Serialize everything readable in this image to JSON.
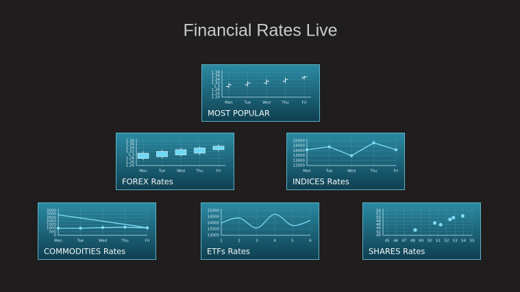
{
  "title": "Financial Rates Live",
  "tiles": [
    {
      "label": "MOST POPULAR",
      "chart": {
        "type": "ohlc",
        "categories": [
          "Mon",
          "Tue",
          "Wed",
          "Thu",
          "Fri"
        ],
        "open": [
          1.3,
          1.31,
          1.32,
          1.33,
          1.35
        ],
        "high": [
          1.32,
          1.33,
          1.34,
          1.35,
          1.36
        ],
        "low": [
          1.29,
          1.3,
          1.31,
          1.32,
          1.34
        ],
        "close": [
          1.31,
          1.32,
          1.33,
          1.34,
          1.355
        ],
        "ylim": [
          1.24,
          1.38
        ],
        "yticks": [
          1.24,
          1.26,
          1.28,
          1.3,
          1.32,
          1.34,
          1.36,
          1.38
        ],
        "color": "#e8f6fa"
      }
    },
    {
      "label": "FOREX Rates",
      "chart": {
        "type": "candlestick",
        "categories": [
          "Mon",
          "Tue",
          "Wed",
          "Thu",
          "Fri"
        ],
        "open": [
          1.28,
          1.29,
          1.3,
          1.31,
          1.33
        ],
        "high": [
          1.32,
          1.33,
          1.34,
          1.35,
          1.36
        ],
        "low": [
          1.27,
          1.28,
          1.29,
          1.3,
          1.32
        ],
        "close": [
          1.31,
          1.32,
          1.33,
          1.34,
          1.35
        ],
        "ylim": [
          1.24,
          1.38
        ],
        "yticks": [
          1.24,
          1.26,
          1.28,
          1.3,
          1.32,
          1.34,
          1.36,
          1.38
        ],
        "color": "#6fd8f2"
      }
    },
    {
      "label": "INDICES Rates",
      "chart": {
        "type": "line",
        "categories": [
          "Mon",
          "Tue",
          "Wed",
          "Thu",
          "Fri"
        ],
        "series": [
          {
            "color": "#7fdcf4",
            "markers": true,
            "values": [
              14100,
              14400,
              13500,
              14800,
              14100
            ]
          }
        ],
        "ylim": [
          12500,
          15000
        ],
        "yticks": [
          12500,
          13000,
          13500,
          14000,
          14500,
          15000
        ]
      }
    },
    {
      "label": "COMMODITIES Rates",
      "chart": {
        "type": "line",
        "categories": [
          "Mon",
          "Tue",
          "Wed",
          "Thu",
          "Fri"
        ],
        "series": [
          {
            "color": "#7fdcf4",
            "markers": false,
            "values": [
              2900,
              2450,
              2000,
              1550,
              1050
            ]
          },
          {
            "color": "#7fdcf4",
            "markers": true,
            "values": [
              1000,
              1000,
              1100,
              1150,
              1050
            ]
          }
        ],
        "ylim": [
          0,
          3500
        ],
        "yticks": [
          0,
          500,
          1000,
          1500,
          2000,
          2500,
          3000,
          3500
        ]
      }
    },
    {
      "label": "ETFs Rates",
      "chart": {
        "type": "spline",
        "x": [
          1,
          2,
          3,
          4,
          5,
          6
        ],
        "series": [
          {
            "color": "#7fdcf4",
            "values": [
              14000,
              14400,
              13600,
              14700,
              13800,
              14200
            ]
          }
        ],
        "xlim": [
          1,
          6
        ],
        "xticks": [
          1,
          2,
          3,
          4,
          5,
          6
        ],
        "ylim": [
          13000,
          15000
        ],
        "yticks": [
          13000,
          13500,
          14000,
          14500,
          15000
        ]
      }
    },
    {
      "label": "SHARES Rates",
      "chart": {
        "type": "scatter",
        "x": [
          48.3,
          50.6,
          51.3,
          52.4,
          52.8,
          53.9
        ],
        "values": [
          43,
          47,
          46,
          49,
          50,
          51
        ],
        "color": "#7fdcf4",
        "xlim": [
          44.5,
          55
        ],
        "xticks": [
          45,
          46,
          47,
          48,
          49,
          50,
          51,
          52,
          53,
          54,
          55
        ],
        "ylim": [
          40,
          54
        ],
        "yticks": [
          40,
          42,
          44,
          46,
          48,
          50,
          52,
          54
        ]
      }
    }
  ]
}
